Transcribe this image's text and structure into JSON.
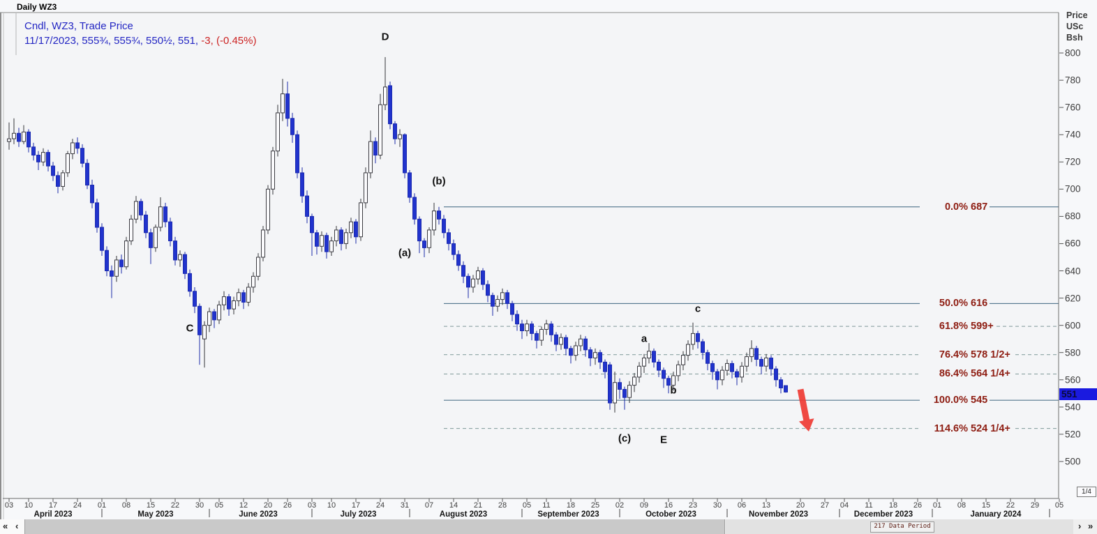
{
  "window": {
    "title": "Daily WZ3"
  },
  "legend": {
    "line1": "Cndl, WZ3, Trade Price",
    "line2_values": "11/17/2023, 555¾, 555¾, 550½, 551,",
    "line2_change": " -3, (-0.45%)"
  },
  "price_axis": {
    "unit_line1": "Price",
    "unit_line2": "USc",
    "unit_line3": "Bsh",
    "ticks": [
      800,
      780,
      760,
      740,
      720,
      700,
      680,
      660,
      640,
      620,
      600,
      580,
      560,
      540,
      520,
      500
    ],
    "last_price_badge": "551",
    "denominator_box": "1/4"
  },
  "fib_levels": [
    {
      "pct": "0.0%",
      "value": "687",
      "price": 687,
      "style": "solid"
    },
    {
      "pct": "50.0%",
      "value": "616",
      "price": 616,
      "style": "solid"
    },
    {
      "pct": "61.8%",
      "value": "599+",
      "price": 599.25,
      "style": "dashed"
    },
    {
      "pct": "76.4%",
      "value": "578 1/2+",
      "price": 578.5,
      "style": "dashed"
    },
    {
      "pct": "86.4%",
      "value": "564 1/4+",
      "price": 564.25,
      "style": "dashed"
    },
    {
      "pct": "100.0%",
      "value": "545",
      "price": 545,
      "style": "solid"
    },
    {
      "pct": "114.6%",
      "value": "524 1/4+",
      "price": 524.25,
      "style": "dashed"
    }
  ],
  "wave_labels": [
    {
      "text": "D",
      "bar": 77,
      "price": 812
    },
    {
      "text": "(b)",
      "bar": 88,
      "price": 706
    },
    {
      "text": "(a)",
      "bar": 81,
      "price": 653
    },
    {
      "text": "C",
      "bar": 37,
      "price": 598
    },
    {
      "text": "a",
      "bar": 130,
      "price": 590
    },
    {
      "text": "c",
      "bar": 141,
      "price": 612
    },
    {
      "text": "b",
      "bar": 136,
      "price": 552
    },
    {
      "text": "(c)",
      "bar": 126,
      "price": 517
    },
    {
      "text": "E",
      "bar": 134,
      "price": 516
    }
  ],
  "annotations": {
    "arrow": {
      "bar": 162,
      "from_price": 553,
      "to_price": 522,
      "color": "#ee3b35"
    }
  },
  "x_axis": {
    "week_ticks": [
      {
        "l": "03",
        "b": 0
      },
      {
        "l": "10",
        "b": 4
      },
      {
        "l": "17",
        "b": 9
      },
      {
        "l": "24",
        "b": 14
      },
      {
        "l": "01",
        "b": 19
      },
      {
        "l": "08",
        "b": 24
      },
      {
        "l": "15",
        "b": 29
      },
      {
        "l": "22",
        "b": 34
      },
      {
        "l": "30",
        "b": 39
      },
      {
        "l": "05",
        "b": 43
      },
      {
        "l": "12",
        "b": 48
      },
      {
        "l": "20",
        "b": 53
      },
      {
        "l": "26",
        "b": 57
      },
      {
        "l": "03",
        "b": 62
      },
      {
        "l": "10",
        "b": 66
      },
      {
        "l": "17",
        "b": 71
      },
      {
        "l": "24",
        "b": 76
      },
      {
        "l": "31",
        "b": 81
      },
      {
        "l": "07",
        "b": 86
      },
      {
        "l": "14",
        "b": 91
      },
      {
        "l": "21",
        "b": 96
      },
      {
        "l": "28",
        "b": 101
      },
      {
        "l": "05",
        "b": 106
      },
      {
        "l": "11",
        "b": 110
      },
      {
        "l": "18",
        "b": 115
      },
      {
        "l": "25",
        "b": 120
      },
      {
        "l": "02",
        "b": 125
      },
      {
        "l": "09",
        "b": 130
      },
      {
        "l": "16",
        "b": 135
      },
      {
        "l": "23",
        "b": 140
      },
      {
        "l": "30",
        "b": 145
      },
      {
        "l": "06",
        "b": 150
      },
      {
        "l": "13",
        "b": 155
      },
      {
        "l": "20",
        "b": 162
      },
      {
        "l": "27",
        "b": 167
      },
      {
        "l": "04",
        "b": 171
      },
      {
        "l": "11",
        "b": 176
      },
      {
        "l": "18",
        "b": 181
      },
      {
        "l": "26",
        "b": 186
      },
      {
        "l": "01",
        "b": 190
      },
      {
        "l": "08",
        "b": 195
      },
      {
        "l": "15",
        "b": 200
      },
      {
        "l": "22",
        "b": 205
      },
      {
        "l": "29",
        "b": 210
      },
      {
        "l": "05",
        "b": 215
      }
    ],
    "months": [
      {
        "label": "April 2023",
        "center": 9
      },
      {
        "label": "May 2023",
        "center": 30
      },
      {
        "label": "June 2023",
        "center": 51
      },
      {
        "label": "July 2023",
        "center": 71.5
      },
      {
        "label": "August 2023",
        "center": 93
      },
      {
        "label": "September 2023",
        "center": 114.5
      },
      {
        "label": "October 2023",
        "center": 135.5
      },
      {
        "label": "November 2023",
        "center": 157.5
      },
      {
        "label": "December 2023",
        "center": 179
      },
      {
        "label": "January 2024",
        "center": 202
      }
    ],
    "month_separator_bars": [
      19,
      41,
      62,
      82,
      105,
      125,
      147,
      170,
      189,
      213
    ]
  },
  "scrollbar": {
    "btn_first": "«",
    "btn_prev": "‹",
    "btn_next": "›",
    "btn_last": "»",
    "period_label": "217 Data Period"
  },
  "colors": {
    "candle_up_fill": "#fbfbfd",
    "candle_up_stroke": "#3a3a40",
    "candle_down_fill": "#2133cd",
    "candle_down_stroke": "#1c2bb0",
    "fib_solid": "#3b637e",
    "fib_dashed": "#7d9898",
    "fib_text": "#8e1d12",
    "arrow_red": "#ee3b35",
    "badge_bg": "#1a1ae0"
  },
  "chart_data": {
    "type": "candlestick",
    "symbol": "WZ3",
    "interval": "Daily",
    "title": "Daily WZ3",
    "ylabel": "Price USc Bsh",
    "ylim": [
      473,
      828
    ],
    "fib_start_bar": 89,
    "last_trade": {
      "date": "11/17/2023",
      "open": 555.75,
      "high": 555.75,
      "low": 550.5,
      "last": 551,
      "net_change": -3,
      "pct_change": "-0.45%"
    },
    "candles": [
      [
        "04/03",
        735,
        749,
        729,
        737
      ],
      [
        "04/04",
        737,
        752,
        733,
        741
      ],
      [
        "04/05",
        741,
        745,
        731,
        735
      ],
      [
        "04/06",
        735,
        747,
        733,
        742
      ],
      [
        "04/10",
        742,
        744,
        727,
        731
      ],
      [
        "04/11",
        731,
        734,
        721,
        725
      ],
      [
        "04/12",
        725,
        728,
        714,
        720
      ],
      [
        "04/13",
        720,
        730,
        717,
        727
      ],
      [
        "04/14",
        727,
        729,
        713,
        717
      ],
      [
        "04/17",
        717,
        720,
        706,
        710
      ],
      [
        "04/18",
        710,
        713,
        697,
        702
      ],
      [
        "04/19",
        702,
        714,
        699,
        712
      ],
      [
        "04/20",
        712,
        728,
        709,
        726
      ],
      [
        "04/21",
        726,
        737,
        722,
        734
      ],
      [
        "04/24",
        734,
        738,
        726,
        730
      ],
      [
        "04/25",
        730,
        733,
        716,
        719
      ],
      [
        "04/26",
        719,
        722,
        700,
        703
      ],
      [
        "04/27",
        703,
        707,
        686,
        690
      ],
      [
        "04/28",
        690,
        693,
        668,
        672
      ],
      [
        "05/01",
        672,
        675,
        651,
        655
      ],
      [
        "05/02",
        655,
        658,
        636,
        640
      ],
      [
        "05/03",
        640,
        644,
        620,
        636
      ],
      [
        "05/04",
        636,
        651,
        632,
        648
      ],
      [
        "05/05",
        648,
        652,
        638,
        643
      ],
      [
        "05/08",
        643,
        665,
        641,
        662
      ],
      [
        "05/09",
        662,
        681,
        659,
        678
      ],
      [
        "05/10",
        678,
        695,
        675,
        691
      ],
      [
        "05/11",
        691,
        693,
        677,
        681
      ],
      [
        "05/12",
        681,
        684,
        664,
        668
      ],
      [
        "05/15",
        668,
        671,
        645,
        657
      ],
      [
        "05/16",
        657,
        674,
        654,
        672
      ],
      [
        "05/17",
        672,
        694,
        669,
        687
      ],
      [
        "05/18",
        687,
        690,
        672,
        676
      ],
      [
        "05/19",
        676,
        679,
        658,
        662
      ],
      [
        "05/22",
        662,
        665,
        644,
        648
      ],
      [
        "05/23",
        648,
        655,
        643,
        652
      ],
      [
        "05/24",
        652,
        654,
        634,
        638
      ],
      [
        "05/25",
        638,
        641,
        621,
        625
      ],
      [
        "05/26",
        625,
        628,
        609,
        614
      ],
      [
        "05/30",
        614,
        616,
        571,
        593
      ],
      [
        "05/31",
        590,
        603,
        569,
        600
      ],
      [
        "06/01",
        600,
        613,
        595,
        610
      ],
      [
        "06/02",
        610,
        612,
        598,
        604
      ],
      [
        "06/05",
        604,
        618,
        601,
        615
      ],
      [
        "06/06",
        615,
        625,
        611,
        621
      ],
      [
        "06/07",
        621,
        623,
        607,
        612
      ],
      [
        "06/08",
        612,
        621,
        608,
        618
      ],
      [
        "06/09",
        618,
        627,
        614,
        624
      ],
      [
        "06/12",
        624,
        626,
        612,
        617
      ],
      [
        "06/13",
        617,
        631,
        614,
        628
      ],
      [
        "06/14",
        628,
        639,
        624,
        636
      ],
      [
        "06/15",
        636,
        653,
        633,
        650
      ],
      [
        "06/16",
        650,
        673,
        647,
        670
      ],
      [
        "06/20",
        670,
        703,
        667,
        700
      ],
      [
        "06/21",
        700,
        731,
        696,
        728
      ],
      [
        "06/22",
        728,
        762,
        724,
        756
      ],
      [
        "06/23",
        756,
        781,
        750,
        770
      ],
      [
        "06/26",
        770,
        779,
        746,
        752
      ],
      [
        "06/27",
        752,
        756,
        734,
        740
      ],
      [
        "06/28",
        740,
        743,
        708,
        712
      ],
      [
        "06/29",
        712,
        716,
        690,
        695
      ],
      [
        "06/30",
        695,
        699,
        675,
        680
      ],
      [
        "07/03",
        680,
        682,
        651,
        668
      ],
      [
        "07/05",
        668,
        670,
        652,
        658
      ],
      [
        "07/06",
        658,
        669,
        654,
        666
      ],
      [
        "07/07",
        666,
        668,
        649,
        654
      ],
      [
        "07/10",
        654,
        665,
        651,
        662
      ],
      [
        "07/11",
        662,
        673,
        658,
        670
      ],
      [
        "07/12",
        670,
        672,
        655,
        660
      ],
      [
        "07/13",
        660,
        671,
        656,
        668
      ],
      [
        "07/14",
        668,
        679,
        664,
        676
      ],
      [
        "07/17",
        676,
        678,
        660,
        665
      ],
      [
        "07/18",
        665,
        693,
        662,
        690
      ],
      [
        "07/19",
        690,
        716,
        686,
        712
      ],
      [
        "07/20",
        712,
        743,
        708,
        735
      ],
      [
        "07/21",
        735,
        738,
        719,
        725
      ],
      [
        "07/24",
        725,
        770,
        722,
        762
      ],
      [
        "07/25",
        762,
        797,
        758,
        775
      ],
      [
        "07/26",
        776,
        779,
        744,
        748
      ],
      [
        "07/27",
        748,
        750,
        733,
        737
      ],
      [
        "07/28",
        737,
        744,
        731,
        740
      ],
      [
        "07/31",
        740,
        741,
        708,
        712
      ],
      [
        "08/01",
        712,
        714,
        690,
        694
      ],
      [
        "08/02",
        694,
        697,
        674,
        678
      ],
      [
        "08/03",
        678,
        680,
        653,
        662
      ],
      [
        "08/04",
        662,
        664,
        650,
        657
      ],
      [
        "08/07",
        657,
        672,
        653,
        670
      ],
      [
        "08/08",
        670,
        690,
        666,
        684
      ],
      [
        "08/09",
        684,
        687,
        674,
        678
      ],
      [
        "08/10",
        678,
        681,
        664,
        668
      ],
      [
        "08/11",
        668,
        671,
        655,
        660
      ],
      [
        "08/14",
        660,
        663,
        648,
        652
      ],
      [
        "08/15",
        652,
        655,
        640,
        644
      ],
      [
        "08/16",
        644,
        647,
        631,
        636
      ],
      [
        "08/17",
        636,
        638,
        620,
        628
      ],
      [
        "08/18",
        628,
        637,
        624,
        634
      ],
      [
        "08/21",
        634,
        643,
        630,
        640
      ],
      [
        "08/22",
        640,
        642,
        626,
        630
      ],
      [
        "08/23",
        630,
        633,
        617,
        622
      ],
      [
        "08/24",
        622,
        624,
        607,
        614
      ],
      [
        "08/25",
        614,
        622,
        610,
        619
      ],
      [
        "08/28",
        619,
        627,
        615,
        624
      ],
      [
        "08/29",
        624,
        626,
        612,
        616
      ],
      [
        "08/30",
        616,
        618,
        603,
        608
      ],
      [
        "08/31",
        608,
        611,
        596,
        601
      ],
      [
        "09/01",
        601,
        604,
        590,
        596
      ],
      [
        "09/05",
        596,
        604,
        592,
        601
      ],
      [
        "09/06",
        601,
        603,
        589,
        594
      ],
      [
        "09/07",
        594,
        596,
        583,
        589
      ],
      [
        "09/08",
        589,
        599,
        585,
        597
      ],
      [
        "09/11",
        597,
        604,
        593,
        601
      ],
      [
        "09/12",
        601,
        603,
        588,
        593
      ],
      [
        "09/13",
        593,
        595,
        581,
        586
      ],
      [
        "09/14",
        586,
        594,
        582,
        591
      ],
      [
        "09/15",
        591,
        593,
        578,
        583
      ],
      [
        "09/18",
        583,
        585,
        572,
        578
      ],
      [
        "09/19",
        578,
        588,
        574,
        585
      ],
      [
        "09/20",
        585,
        593,
        581,
        590
      ],
      [
        "09/21",
        590,
        592,
        577,
        582
      ],
      [
        "09/22",
        582,
        584,
        570,
        576
      ],
      [
        "09/25",
        576,
        583,
        571,
        580
      ],
      [
        "09/26",
        580,
        582,
        568,
        573
      ],
      [
        "09/27",
        573,
        575,
        561,
        566
      ],
      [
        "09/28",
        571,
        573,
        538,
        543
      ],
      [
        "09/29",
        543,
        566,
        536,
        558
      ],
      [
        "10/02",
        558,
        561,
        546,
        553
      ],
      [
        "10/03",
        553,
        555,
        538,
        547
      ],
      [
        "10/04",
        547,
        559,
        543,
        556
      ],
      [
        "10/05",
        556,
        565,
        551,
        562
      ],
      [
        "10/06",
        562,
        573,
        558,
        570
      ],
      [
        "10/09",
        570,
        579,
        565,
        576
      ],
      [
        "10/10",
        576,
        587,
        572,
        581
      ],
      [
        "10/11",
        581,
        583,
        569,
        573
      ],
      [
        "10/12",
        573,
        575,
        562,
        567
      ],
      [
        "10/13",
        567,
        569,
        554,
        561
      ],
      [
        "10/16",
        561,
        563,
        550,
        556
      ],
      [
        "10/17",
        556,
        566,
        552,
        563
      ],
      [
        "10/18",
        563,
        574,
        559,
        571
      ],
      [
        "10/19",
        571,
        581,
        567,
        578
      ],
      [
        "10/20",
        578,
        589,
        574,
        586
      ],
      [
        "10/23",
        586,
        602,
        582,
        594
      ],
      [
        "10/24",
        594,
        596,
        583,
        588
      ],
      [
        "10/25",
        588,
        590,
        575,
        580
      ],
      [
        "10/26",
        580,
        582,
        567,
        572
      ],
      [
        "10/27",
        572,
        574,
        560,
        566
      ],
      [
        "10/30",
        566,
        568,
        553,
        560
      ],
      [
        "10/31",
        560,
        570,
        556,
        567
      ],
      [
        "11/01",
        567,
        575,
        563,
        572
      ],
      [
        "11/02",
        572,
        574,
        561,
        566
      ],
      [
        "11/03",
        566,
        568,
        556,
        562
      ],
      [
        "11/06",
        562,
        573,
        558,
        570
      ],
      [
        "11/07",
        570,
        580,
        566,
        577
      ],
      [
        "11/08",
        577,
        589,
        573,
        583
      ],
      [
        "11/09",
        583,
        585,
        570,
        575
      ],
      [
        "11/10",
        575,
        577,
        564,
        570
      ],
      [
        "11/13",
        570,
        579,
        566,
        576
      ],
      [
        "11/14",
        576,
        578,
        563,
        568
      ],
      [
        "11/15",
        568,
        570,
        555,
        560
      ],
      [
        "11/16",
        560,
        562,
        550,
        554
      ],
      [
        "11/17",
        555.75,
        555.75,
        550.5,
        551
      ]
    ]
  }
}
